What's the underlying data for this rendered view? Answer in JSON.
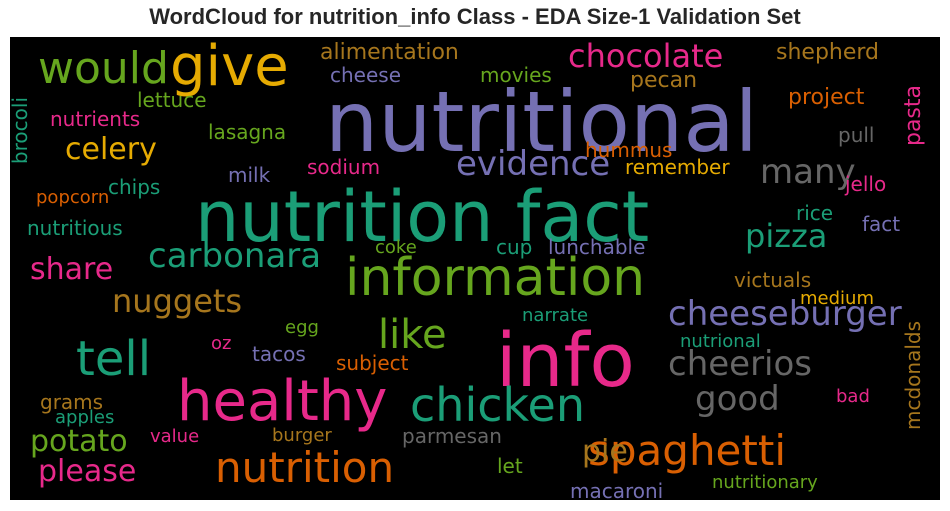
{
  "title": "WordCloud for nutrition_info Class - EDA Size-1 Validation Set",
  "palette": {
    "teal": "#1b9e77",
    "orange": "#d95f02",
    "purple": "#7570b3",
    "pink": "#e7298a",
    "green": "#66a61e",
    "gold": "#e6ab02",
    "brown": "#a6761d",
    "gray": "#666666"
  },
  "words": [
    {
      "text": "nutritional",
      "color": "#7570b3"
    },
    {
      "text": "nutrition fact",
      "color": "#1b9e77"
    },
    {
      "text": "info",
      "color": "#e7298a"
    },
    {
      "text": "information",
      "color": "#66a61e"
    },
    {
      "text": "healthy",
      "color": "#e7298a"
    },
    {
      "text": "give",
      "color": "#e6ab02"
    },
    {
      "text": "would",
      "color": "#66a61e"
    },
    {
      "text": "chocolate",
      "color": "#e7298a"
    },
    {
      "text": "nutrition",
      "color": "#d95f02"
    },
    {
      "text": "chicken",
      "color": "#1b9e77"
    },
    {
      "text": "tell",
      "color": "#1b9e77"
    },
    {
      "text": "spaghetti",
      "color": "#d95f02"
    },
    {
      "text": "cheeseburger",
      "color": "#7570b3"
    },
    {
      "text": "evidence",
      "color": "#7570b3"
    },
    {
      "text": "carbonara",
      "color": "#1b9e77"
    },
    {
      "text": "cheerios",
      "color": "#666666"
    },
    {
      "text": "good",
      "color": "#666666"
    },
    {
      "text": "like",
      "color": "#66a61e"
    },
    {
      "text": "nuggets",
      "color": "#a6761d"
    },
    {
      "text": "celery",
      "color": "#e6ab02"
    },
    {
      "text": "pizza",
      "color": "#1b9e77"
    },
    {
      "text": "many",
      "color": "#666666"
    },
    {
      "text": "potato",
      "color": "#66a61e"
    },
    {
      "text": "please",
      "color": "#e7298a"
    },
    {
      "text": "share",
      "color": "#e7298a"
    },
    {
      "text": "pie",
      "color": "#a6761d"
    },
    {
      "text": "alimentation",
      "color": "#a6761d"
    },
    {
      "text": "shepherd",
      "color": "#a6761d"
    },
    {
      "text": "cheese",
      "color": "#7570b3"
    },
    {
      "text": "movies",
      "color": "#66a61e"
    },
    {
      "text": "pecan",
      "color": "#a6761d"
    },
    {
      "text": "lettuce",
      "color": "#66a61e"
    },
    {
      "text": "project",
      "color": "#d95f02"
    },
    {
      "text": "nutrients",
      "color": "#e7298a"
    },
    {
      "text": "lasagna",
      "color": "#66a61e"
    },
    {
      "text": "pull",
      "color": "#666666"
    },
    {
      "text": "pasta",
      "color": "#e7298a"
    },
    {
      "text": "brocoli",
      "color": "#1b9e77"
    },
    {
      "text": "hummus",
      "color": "#d95f02"
    },
    {
      "text": "sodium",
      "color": "#e7298a"
    },
    {
      "text": "remember",
      "color": "#e6ab02"
    },
    {
      "text": "milk",
      "color": "#7570b3"
    },
    {
      "text": "chips",
      "color": "#1b9e77"
    },
    {
      "text": "jello",
      "color": "#e7298a"
    },
    {
      "text": "popcorn",
      "color": "#d95f02"
    },
    {
      "text": "rice",
      "color": "#1b9e77"
    },
    {
      "text": "fact",
      "color": "#7570b3"
    },
    {
      "text": "nutritious",
      "color": "#1b9e77"
    },
    {
      "text": "cup",
      "color": "#1b9e77"
    },
    {
      "text": "lunchable",
      "color": "#7570b3"
    },
    {
      "text": "coke",
      "color": "#66a61e"
    },
    {
      "text": "victuals",
      "color": "#a6761d"
    },
    {
      "text": "medium",
      "color": "#e6ab02"
    },
    {
      "text": "egg",
      "color": "#66a61e"
    },
    {
      "text": "narrate",
      "color": "#1b9e77"
    },
    {
      "text": "oz",
      "color": "#e7298a"
    },
    {
      "text": "tacos",
      "color": "#7570b3"
    },
    {
      "text": "subject",
      "color": "#d95f02"
    },
    {
      "text": "nutrional",
      "color": "#1b9e77"
    },
    {
      "text": "mcdonalds",
      "color": "#a6761d"
    },
    {
      "text": "grams",
      "color": "#a6761d"
    },
    {
      "text": "apples",
      "color": "#1b9e77"
    },
    {
      "text": "bad",
      "color": "#e7298a"
    },
    {
      "text": "value",
      "color": "#e7298a"
    },
    {
      "text": "burger",
      "color": "#a6761d"
    },
    {
      "text": "parmesan",
      "color": "#666666"
    },
    {
      "text": "let",
      "color": "#66a61e"
    },
    {
      "text": "macaroni",
      "color": "#7570b3"
    },
    {
      "text": "nutritionary",
      "color": "#66a61e"
    }
  ]
}
